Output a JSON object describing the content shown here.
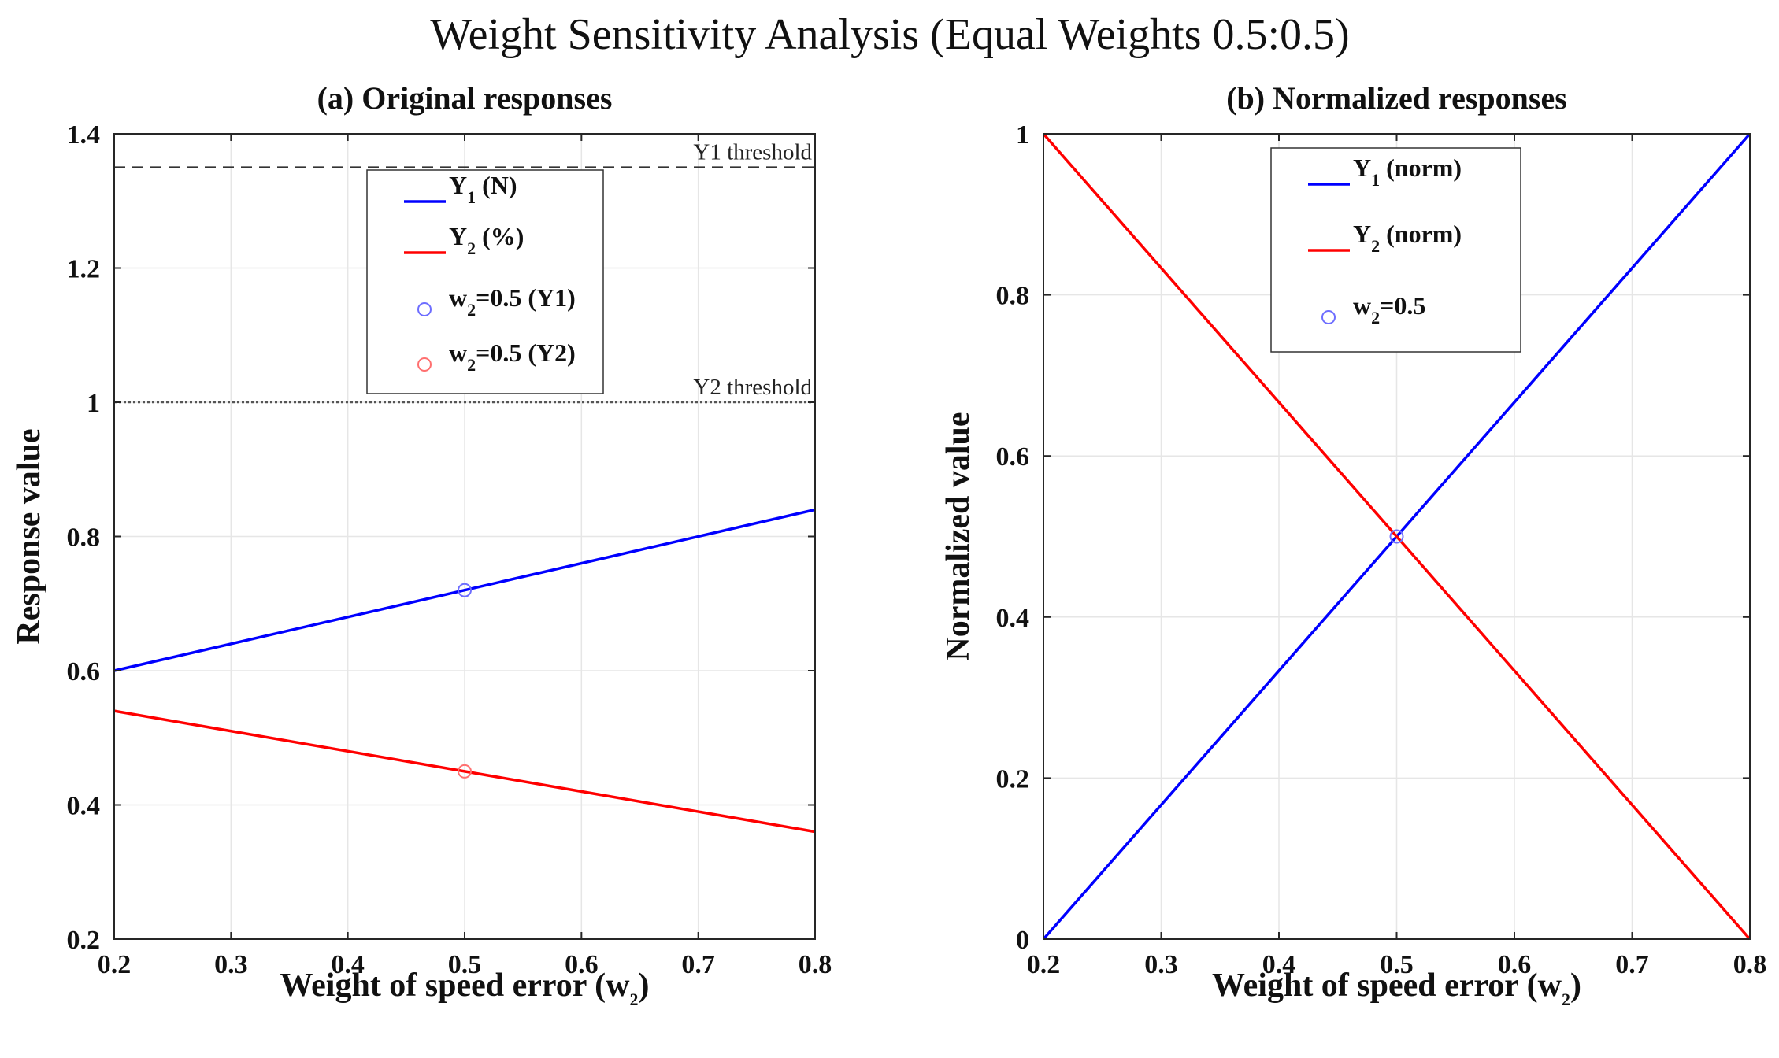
{
  "figure": {
    "title": "Weight Sensitivity Analysis (Equal Weights 0.5:0.5)"
  },
  "chart_data": [
    {
      "type": "line",
      "title": "(a) Original responses",
      "xlabel_main": "Weight of speed error (w",
      "xlabel_sub": "2",
      "xlabel_end": ")",
      "ylabel": "Response value",
      "xlim": [
        0.2,
        0.8
      ],
      "ylim": [
        0.2,
        1.4
      ],
      "xticks": [
        0.2,
        0.3,
        0.4,
        0.5,
        0.6,
        0.7,
        0.8
      ],
      "xtick_labels": [
        "0.2",
        "0.3",
        "0.4",
        "0.5",
        "0.6",
        "0.7",
        "0.8"
      ],
      "yticks": [
        0.2,
        0.4,
        0.6,
        0.8,
        1.0,
        1.2,
        1.4
      ],
      "ytick_labels": [
        "0.2",
        "0.4",
        "0.6",
        "0.8",
        "1",
        "1.2",
        "1.4"
      ],
      "grid": true,
      "series": [
        {
          "name": "Y1 (N)",
          "color": "#0000ff",
          "x": [
            0.2,
            0.8
          ],
          "y": [
            0.6,
            0.84
          ]
        },
        {
          "name": "Y2 (%)",
          "color": "#ff0000",
          "x": [
            0.2,
            0.8
          ],
          "y": [
            0.54,
            0.36
          ]
        }
      ],
      "markers": [
        {
          "name": "w2=0.5 (Y1)",
          "color": "#6e6eff",
          "x": 0.5,
          "y": 0.72
        },
        {
          "name": "w2=0.5 (Y2)",
          "color": "#ff7070",
          "x": 0.5,
          "y": 0.45
        }
      ],
      "thresholds": [
        {
          "label": "Y1 threshold",
          "value": 1.35,
          "style": "dashed",
          "color": "#333333"
        },
        {
          "label": "Y2 threshold",
          "value": 1.0,
          "style": "dotted",
          "color": "#555555"
        }
      ],
      "legend": {
        "position": "top-center",
        "entries": [
          {
            "kind": "line",
            "color": "#0000ff",
            "main": "Y",
            "sub": "1",
            "rest": " (N)"
          },
          {
            "kind": "line",
            "color": "#ff0000",
            "main": "Y",
            "sub": "2",
            "rest": " (%)"
          },
          {
            "kind": "marker",
            "color": "#6e6eff",
            "main": "w",
            "sub": "2",
            "rest": "=0.5 (Y1)"
          },
          {
            "kind": "marker",
            "color": "#ff7070",
            "main": "w",
            "sub": "2",
            "rest": "=0.5 (Y2)"
          }
        ]
      }
    },
    {
      "type": "line",
      "title": "(b) Normalized responses",
      "xlabel_main": "Weight of speed error (w",
      "xlabel_sub": "2",
      "xlabel_end": ")",
      "ylabel": "Normalized value",
      "xlim": [
        0.2,
        0.8
      ],
      "ylim": [
        0,
        1
      ],
      "xticks": [
        0.2,
        0.3,
        0.4,
        0.5,
        0.6,
        0.7,
        0.8
      ],
      "xtick_labels": [
        "0.2",
        "0.3",
        "0.4",
        "0.5",
        "0.6",
        "0.7",
        "0.8"
      ],
      "yticks": [
        0,
        0.2,
        0.4,
        0.6,
        0.8,
        1
      ],
      "ytick_labels": [
        "0",
        "0.2",
        "0.4",
        "0.6",
        "0.8",
        "1"
      ],
      "grid": true,
      "series": [
        {
          "name": "Y1 (norm)",
          "color": "#0000ff",
          "x": [
            0.2,
            0.8
          ],
          "y": [
            0,
            1
          ]
        },
        {
          "name": "Y2 (norm)",
          "color": "#ff0000",
          "x": [
            0.2,
            0.8
          ],
          "y": [
            1,
            0
          ]
        }
      ],
      "markers": [
        {
          "name": "w2=0.5",
          "color": "#6e6eff",
          "x": 0.5,
          "y": 0.5
        }
      ],
      "thresholds": [],
      "legend": {
        "position": "top-center",
        "entries": [
          {
            "kind": "line",
            "color": "#0000ff",
            "main": "Y",
            "sub": "1",
            "rest": " (norm)"
          },
          {
            "kind": "line",
            "color": "#ff0000",
            "main": "Y",
            "sub": "2",
            "rest": " (norm)"
          },
          {
            "kind": "marker",
            "color": "#6e6eff",
            "main": "w",
            "sub": "2",
            "rest": "=0.5"
          }
        ]
      }
    }
  ]
}
